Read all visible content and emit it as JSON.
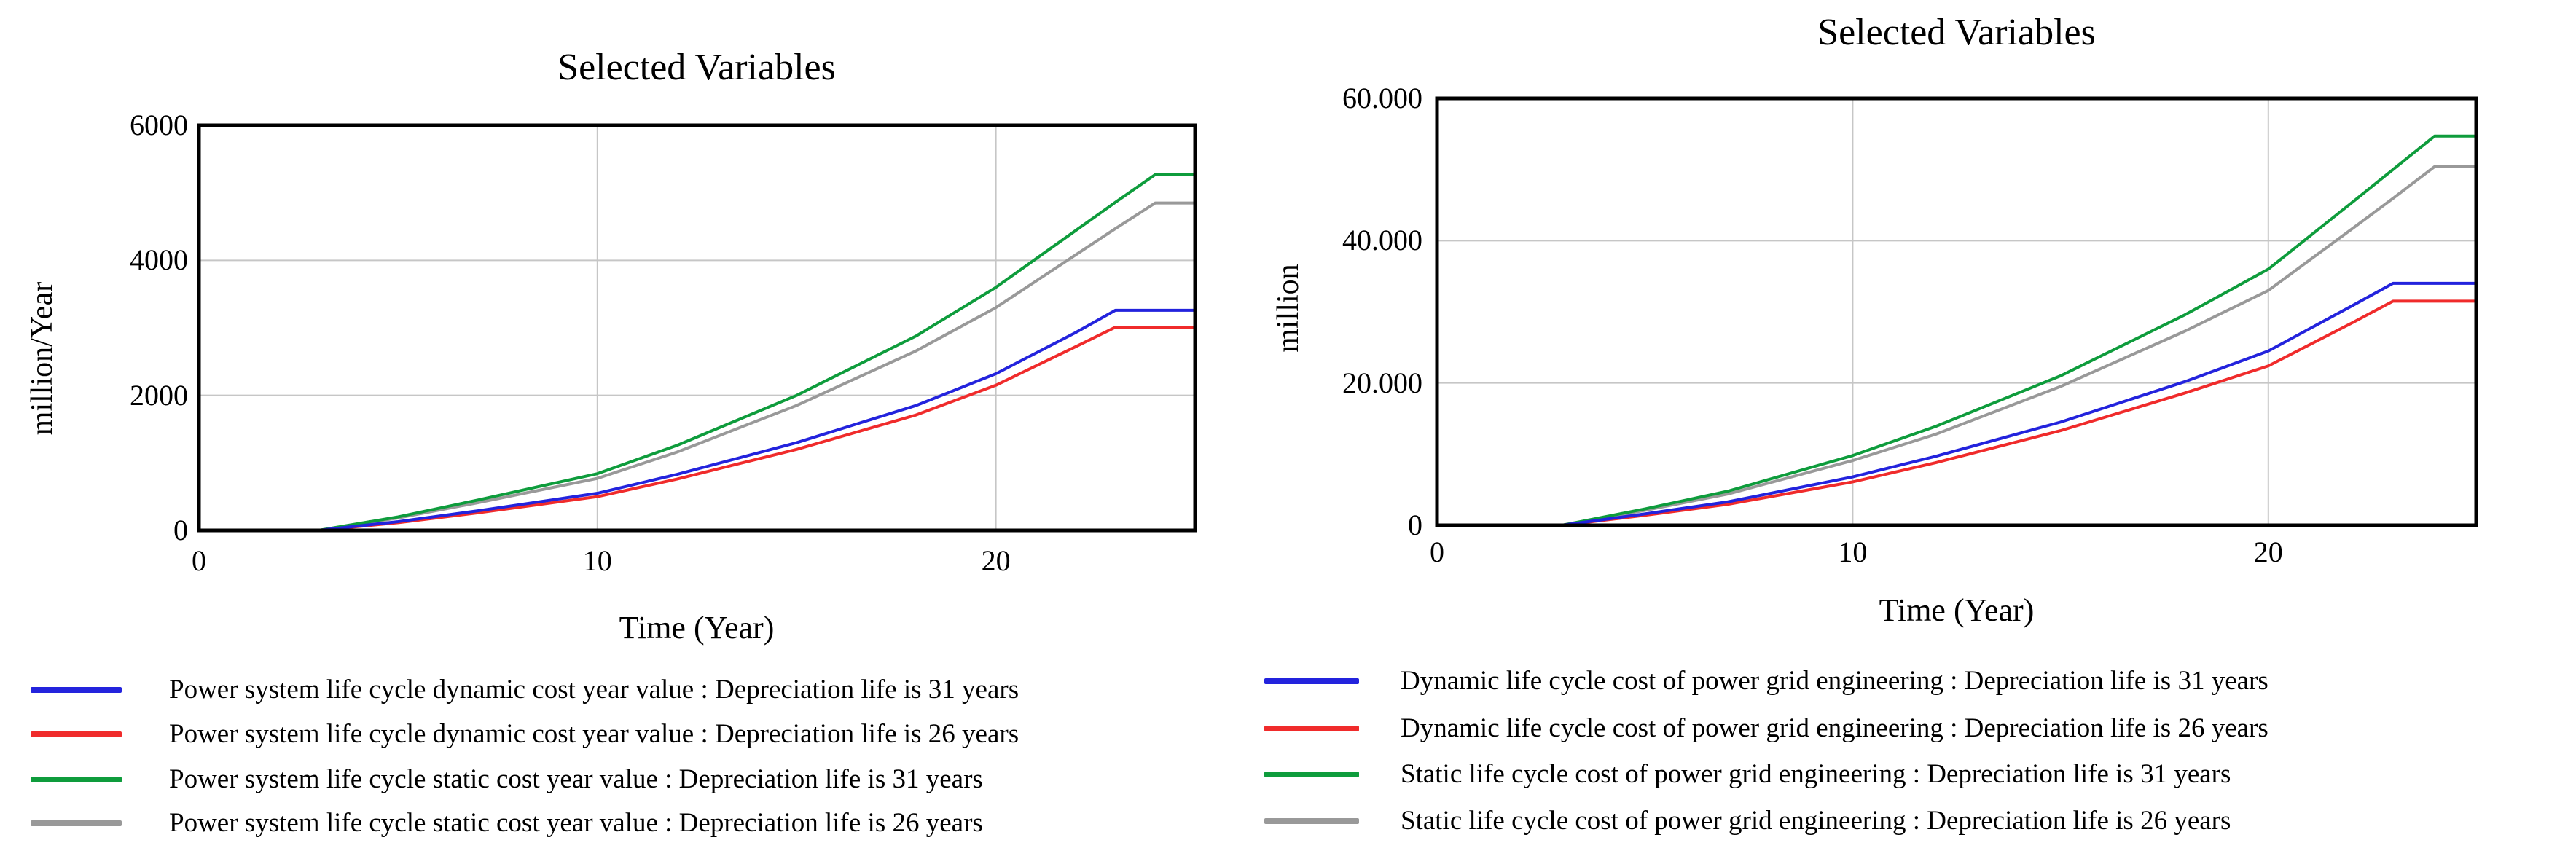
{
  "figure": {
    "background": "#ffffff",
    "frame_color": "#000000",
    "gridline_color": "#c6c6c6"
  },
  "chart_data": [
    {
      "id": "left-chart",
      "type": "line",
      "title": "Selected Variables",
      "xlabel": "Time (Year)",
      "ylabel": "million/Year",
      "xlim": [
        0,
        25
      ],
      "ylim": [
        0,
        6000
      ],
      "grid": true,
      "legend_position": "below",
      "x_ticks": [
        {
          "value": 0,
          "label": "0"
        },
        {
          "value": 10,
          "label": "10"
        },
        {
          "value": 20,
          "label": "20"
        }
      ],
      "y_ticks": [
        {
          "value": 0,
          "label": "0"
        },
        {
          "value": 2000,
          "label": "2000"
        },
        {
          "value": 4000,
          "label": "4000"
        },
        {
          "value": 6000,
          "label": "6000"
        }
      ],
      "x": [
        0,
        3,
        5,
        7,
        10,
        12,
        15,
        18,
        20,
        22,
        23,
        24,
        25
      ],
      "series": [
        {
          "name": "Power system life cycle dynamic cost year value : Depreciation life is 31 years",
          "color": "#2323dd",
          "values": [
            0,
            0,
            130,
            290,
            550,
            830,
            1300,
            1850,
            2320,
            2930,
            3260,
            3260,
            3260
          ]
        },
        {
          "name": "Power system life cycle dynamic cost year value : Depreciation life is 26 years",
          "color": "#f02b2b",
          "values": [
            0,
            0,
            115,
            260,
            500,
            760,
            1200,
            1710,
            2150,
            2720,
            3010,
            3010,
            3010
          ]
        },
        {
          "name": "Power system life cycle static cost year value : Depreciation life is 31 years",
          "color": "#0e9c3c",
          "values": [
            0,
            0,
            200,
            450,
            840,
            1260,
            2000,
            2880,
            3600,
            4440,
            4860,
            5270,
            5270
          ]
        },
        {
          "name": "Power system life cycle static cost year value : Depreciation life is 26 years",
          "color": "#999999",
          "values": [
            0,
            0,
            185,
            410,
            770,
            1160,
            1850,
            2660,
            3300,
            4080,
            4470,
            4850,
            4850
          ]
        }
      ]
    },
    {
      "id": "right-chart",
      "type": "line",
      "title": "Selected Variables",
      "xlabel": "Time (Year)",
      "ylabel": "million",
      "xlim": [
        0,
        25
      ],
      "ylim": [
        0,
        60000
      ],
      "grid": true,
      "legend_position": "below",
      "x_ticks": [
        {
          "value": 0,
          "label": "0"
        },
        {
          "value": 10,
          "label": "10"
        },
        {
          "value": 20,
          "label": "20"
        }
      ],
      "y_ticks": [
        {
          "value": 0,
          "label": "0"
        },
        {
          "value": 20000,
          "label": "20.000"
        },
        {
          "value": 40000,
          "label": "40.000"
        },
        {
          "value": 60000,
          "label": "60.000"
        }
      ],
      "x": [
        0,
        3,
        5,
        7,
        10,
        12,
        15,
        18,
        20,
        22,
        23,
        24,
        25
      ],
      "series": [
        {
          "name": "Dynamic life cycle cost of power grid engineering : Depreciation life is 31 years",
          "color": "#2323dd",
          "values": [
            0,
            0,
            1600,
            3300,
            6800,
            9700,
            14500,
            20200,
            24500,
            30800,
            34000,
            34000,
            34000
          ]
        },
        {
          "name": "Dynamic life cycle cost of power grid engineering : Depreciation life is 26 years",
          "color": "#f02b2b",
          "values": [
            0,
            0,
            1400,
            2950,
            6100,
            8800,
            13300,
            18600,
            22400,
            28400,
            31500,
            31500,
            31500
          ]
        },
        {
          "name": "Static life cycle cost of power grid engineering : Depreciation life is 31 years",
          "color": "#0e9c3c",
          "values": [
            0,
            0,
            2300,
            4800,
            9800,
            13900,
            21000,
            29600,
            36000,
            45300,
            50000,
            54700,
            54700
          ]
        },
        {
          "name": "Static life cycle cost of power grid engineering : Depreciation life is 26 years",
          "color": "#999999",
          "values": [
            0,
            0,
            2100,
            4400,
            9100,
            12800,
            19500,
            27300,
            33000,
            41600,
            45950,
            50400,
            50400
          ]
        }
      ]
    }
  ]
}
